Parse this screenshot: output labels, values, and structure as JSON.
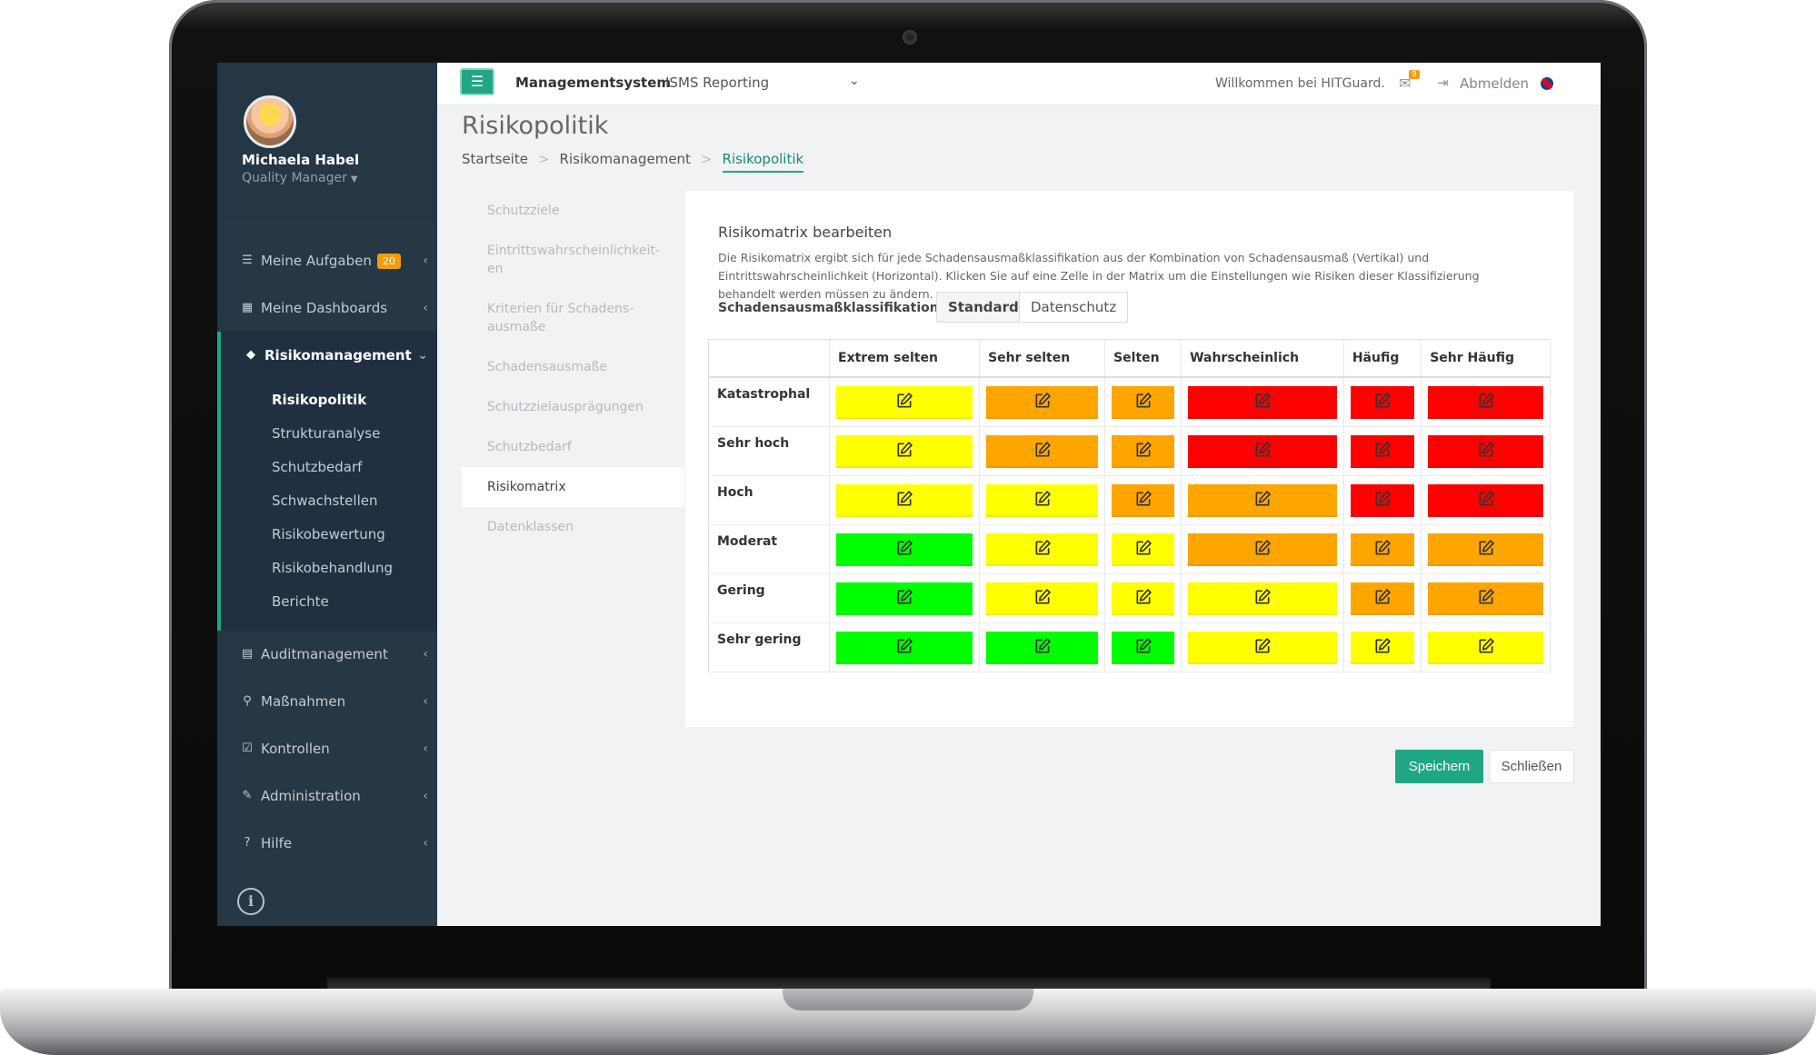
{
  "user": {
    "name": "Michaela Habel",
    "role": "Quality Manager"
  },
  "sidebar": {
    "items": [
      {
        "label": "Meine Aufgaben",
        "badge": "20",
        "icon": "tasks-icon"
      },
      {
        "label": "Meine Dashboards",
        "icon": "dashboard-icon"
      },
      {
        "label": "Risikomanagement",
        "icon": "diamond-icon"
      },
      {
        "label": "Auditmanagement",
        "icon": "document-icon"
      },
      {
        "label": "Maßnahmen",
        "icon": "search-icon"
      },
      {
        "label": "Kontrollen",
        "icon": "checkbox-icon"
      },
      {
        "label": "Administration",
        "icon": "wrench-icon"
      },
      {
        "label": "Hilfe",
        "icon": "help-icon"
      }
    ],
    "sub_items": [
      "Risikopolitik",
      "Strukturanalyse",
      "Schutzbedarf",
      "Schwachstellen",
      "Risikobewertung",
      "Risikobehandlung",
      "Berichte"
    ]
  },
  "topbar": {
    "system": "Managementsystem",
    "selected": "ISMS Reporting",
    "welcome": "Willkommen bei HITGuard.",
    "mail_count": "9",
    "logout": "Abmelden"
  },
  "page": {
    "title": "Risikopolitik",
    "breadcrumb": [
      "Startseite",
      "Risikomanagement",
      "Risikopolitik"
    ]
  },
  "tabs": [
    "Schutzziele",
    "Eintrittswahrscheinlichkeit-en",
    "Kriterien für Schadens-ausmaße",
    "Schadensausmaße",
    "Schutzzielausprägungen",
    "Schutzbedarf",
    "Risikomatrix",
    "Datenklassen"
  ],
  "panel": {
    "title": "Risikomatrix bearbeiten",
    "description": "Die Risikomatrix ergibt sich für jede Schadensausmaßklassifikation aus der Kombination von Schadensausmaß (Vertikal) und Eintrittswahrscheinlichkeit (Horizontal). Klicken Sie auf eine Zelle in der Matrix um die Einstellungen wie Risiken dieser Klassifizierung behandelt werden müssen zu ändern.",
    "classification_label": "Schadensausmaßklassifikation:",
    "classifications": [
      "Standard",
      "Datenschutz"
    ]
  },
  "matrix": {
    "columns": [
      "Extrem selten",
      "Sehr selten",
      "Selten",
      "Wahrscheinlich",
      "Häufig",
      "Sehr Häufig"
    ],
    "rows": [
      {
        "label": "Katastrophal",
        "cells": [
          "yellow",
          "orange",
          "orange",
          "red",
          "red",
          "red"
        ]
      },
      {
        "label": "Sehr hoch",
        "cells": [
          "yellow",
          "orange",
          "orange",
          "red",
          "red",
          "red"
        ]
      },
      {
        "label": "Hoch",
        "cells": [
          "yellow",
          "yellow",
          "orange",
          "orange",
          "red",
          "red"
        ]
      },
      {
        "label": "Moderat",
        "cells": [
          "green",
          "yellow",
          "yellow",
          "orange",
          "orange",
          "orange"
        ]
      },
      {
        "label": "Gering",
        "cells": [
          "green",
          "yellow",
          "yellow",
          "yellow",
          "orange",
          "orange"
        ]
      },
      {
        "label": "Sehr gering",
        "cells": [
          "green",
          "green",
          "green",
          "yellow",
          "yellow",
          "yellow"
        ]
      }
    ],
    "colors": {
      "green": "#00ff00",
      "yellow": "#ffff00",
      "orange": "#ffa500",
      "red": "#ff0000"
    }
  },
  "footer": {
    "save": "Speichern",
    "close": "Schließen"
  },
  "colors": {
    "accent": "#1fa784",
    "sidebar": "#263746"
  }
}
